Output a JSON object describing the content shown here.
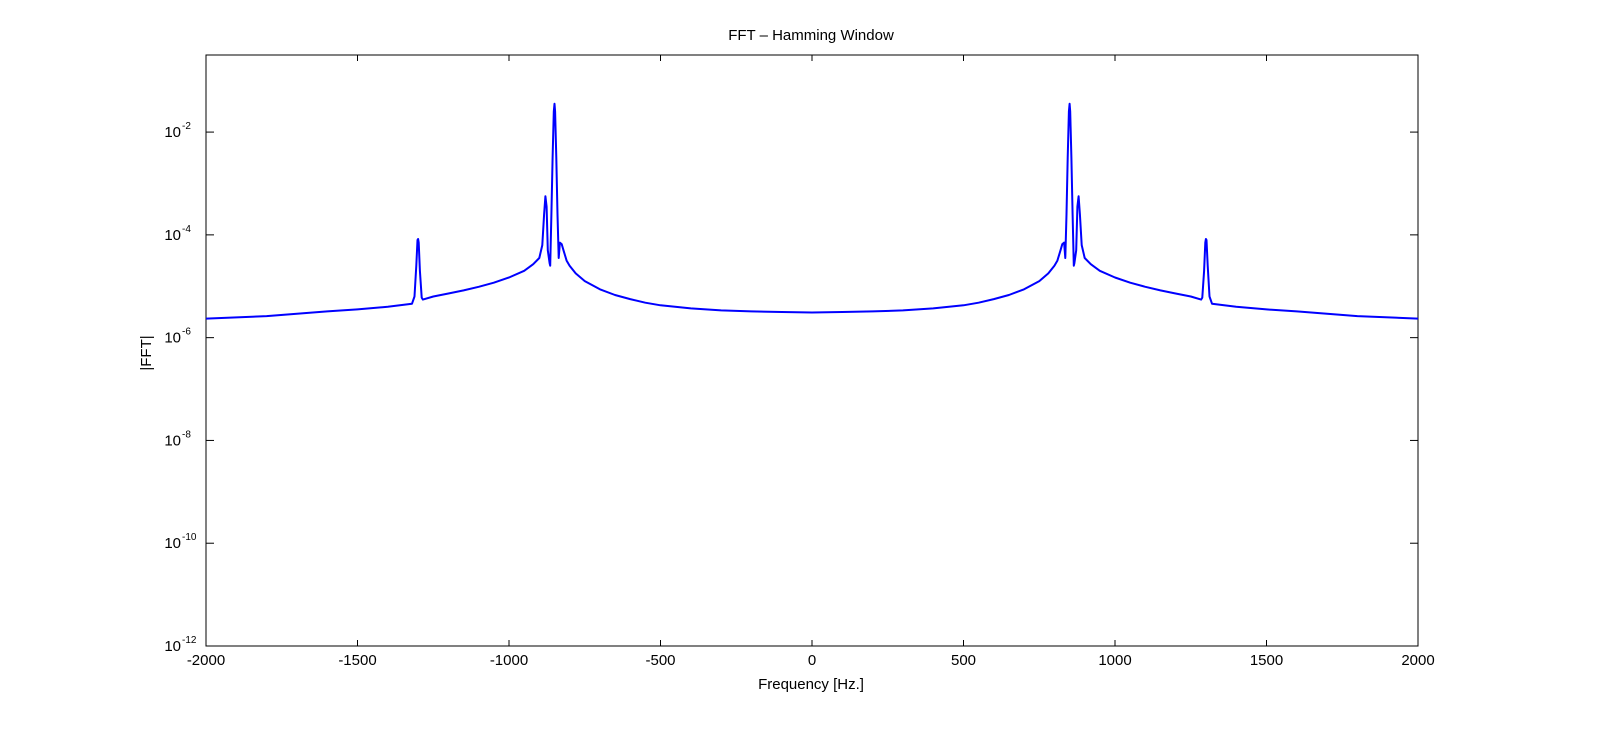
{
  "chart_data": {
    "type": "line",
    "title": "FFT – Hamming Window",
    "xlabel": "Frequency [Hz.]",
    "ylabel": "|FFT|",
    "xscale": "linear",
    "yscale": "log",
    "xlim": [
      -2000,
      2000
    ],
    "ylim_exponent": [
      -12,
      -0.5
    ],
    "grid": false,
    "legend": "none",
    "line_color": "#0000ff",
    "x_ticks": [
      -2000,
      -1500,
      -1000,
      -500,
      0,
      500,
      1000,
      1500,
      2000
    ],
    "x_tick_labels": [
      "-2000",
      "-1500",
      "-1000",
      "-500",
      "0",
      "500",
      "1000",
      "1500",
      "2000"
    ],
    "y_ticks_exponent": [
      -12,
      -10,
      -8,
      -6,
      -4,
      -2
    ],
    "y_tick_base": "10",
    "y_tick_exponent_labels": [
      "-12",
      "-10",
      "-8",
      "-6",
      "-4",
      "-2"
    ],
    "series": [
      {
        "name": "|FFT|",
        "x": [
          -2000,
          -1800,
          -1600,
          -1500,
          -1400,
          -1320,
          -1312,
          -1306,
          -1302,
          -1300,
          -1298,
          -1294,
          -1288,
          -1284,
          -1250,
          -1200,
          -1150,
          -1100,
          -1050,
          -1000,
          -950,
          -920,
          -900,
          -890,
          -884,
          -880,
          -876,
          -872,
          -866,
          -864,
          -860,
          -856,
          -852,
          -850,
          -848,
          -844,
          -840,
          -836,
          -832,
          -826,
          -820,
          -810,
          -800,
          -780,
          -750,
          -700,
          -650,
          -600,
          -550,
          -500,
          -400,
          -300,
          -200,
          -100,
          0,
          100,
          200,
          300,
          400,
          500,
          550,
          600,
          650,
          700,
          750,
          780,
          800,
          810,
          820,
          826,
          832,
          836,
          840,
          844,
          848,
          850,
          852,
          856,
          860,
          864,
          866,
          872,
          876,
          880,
          884,
          890,
          900,
          920,
          950,
          1000,
          1050,
          1100,
          1150,
          1200,
          1250,
          1284,
          1288,
          1294,
          1298,
          1300,
          1302,
          1306,
          1312,
          1320,
          1400,
          1500,
          1600,
          1800,
          2000
        ],
        "y_exponent": [
          -5.63,
          -5.58,
          -5.49,
          -5.45,
          -5.4,
          -5.34,
          -5.2,
          -4.6,
          -4.1,
          -4.08,
          -4.15,
          -4.7,
          -5.22,
          -5.26,
          -5.2,
          -5.14,
          -5.08,
          -5.01,
          -4.93,
          -4.83,
          -4.7,
          -4.57,
          -4.45,
          -4.2,
          -3.6,
          -3.25,
          -3.45,
          -4.3,
          -4.55,
          -4.6,
          -3.6,
          -2.5,
          -1.6,
          -1.45,
          -1.6,
          -2.5,
          -3.6,
          -4.45,
          -4.15,
          -4.18,
          -4.3,
          -4.5,
          -4.6,
          -4.75,
          -4.9,
          -5.06,
          -5.17,
          -5.25,
          -5.32,
          -5.37,
          -5.43,
          -5.47,
          -5.49,
          -5.5,
          -5.51,
          -5.5,
          -5.49,
          -5.47,
          -5.43,
          -5.37,
          -5.32,
          -5.25,
          -5.17,
          -5.06,
          -4.9,
          -4.75,
          -4.6,
          -4.5,
          -4.3,
          -4.18,
          -4.15,
          -4.45,
          -3.6,
          -2.5,
          -1.6,
          -1.45,
          -1.6,
          -2.5,
          -3.6,
          -4.6,
          -4.55,
          -4.3,
          -3.45,
          -3.25,
          -3.6,
          -4.2,
          -4.45,
          -4.57,
          -4.7,
          -4.83,
          -4.93,
          -5.01,
          -5.08,
          -5.14,
          -5.2,
          -5.26,
          -5.22,
          -4.7,
          -4.15,
          -4.08,
          -4.1,
          -4.6,
          -5.2,
          -5.34,
          -5.4,
          -5.45,
          -5.49,
          -5.58,
          -5.63
        ]
      }
    ]
  }
}
